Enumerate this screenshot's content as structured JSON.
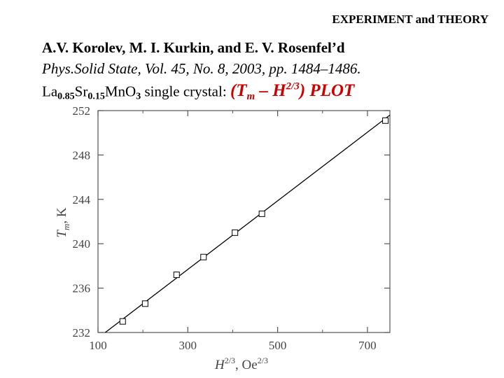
{
  "header": {
    "section": "EXPERIMENT and THEORY"
  },
  "citation": {
    "authors": "A.V. Korolev, M. I. Kurkin, and E. V. Rosenfel’d",
    "journal": "Phys.Solid State, Vol. 45, No. 8, 2003, pp. 1484–1486.",
    "material_parts": [
      "La",
      "0.85",
      "Sr",
      "0.15",
      "Mn",
      "O",
      "3"
    ],
    "material_suffix": "single crystal:",
    "plot_title": {
      "open": "(",
      "T": "T",
      "m": "m",
      "dash": " – ",
      "H": "H",
      "exp": "2/3",
      "close": ") PLOT"
    }
  },
  "chart_data": {
    "type": "scatter",
    "xlabel": {
      "base": "H",
      "sup": "2/3",
      "sep": ", ",
      "unit": "Oe",
      "unit_sup": "2/3"
    },
    "ylabel": {
      "base": "T",
      "sub": "m",
      "unit": ", K"
    },
    "xlim": [
      100,
      750
    ],
    "ylim": [
      232,
      252
    ],
    "x_ticks": [
      100,
      300,
      500,
      700
    ],
    "y_ticks": [
      232,
      236,
      240,
      244,
      248,
      252
    ],
    "points": [
      {
        "x": 155,
        "y": 233.0
      },
      {
        "x": 205,
        "y": 234.6
      },
      {
        "x": 275,
        "y": 237.2
      },
      {
        "x": 335,
        "y": 238.8
      },
      {
        "x": 405,
        "y": 241.0
      },
      {
        "x": 465,
        "y": 242.7
      },
      {
        "x": 740,
        "y": 251.1
      }
    ],
    "fit_line": [
      {
        "x": 100,
        "y": 231.5
      },
      {
        "x": 750,
        "y": 251.6
      }
    ],
    "marker": "open-square",
    "grid": false,
    "colors": {
      "axis": "#555555",
      "line": "#000000",
      "marker": "#000000"
    }
  }
}
